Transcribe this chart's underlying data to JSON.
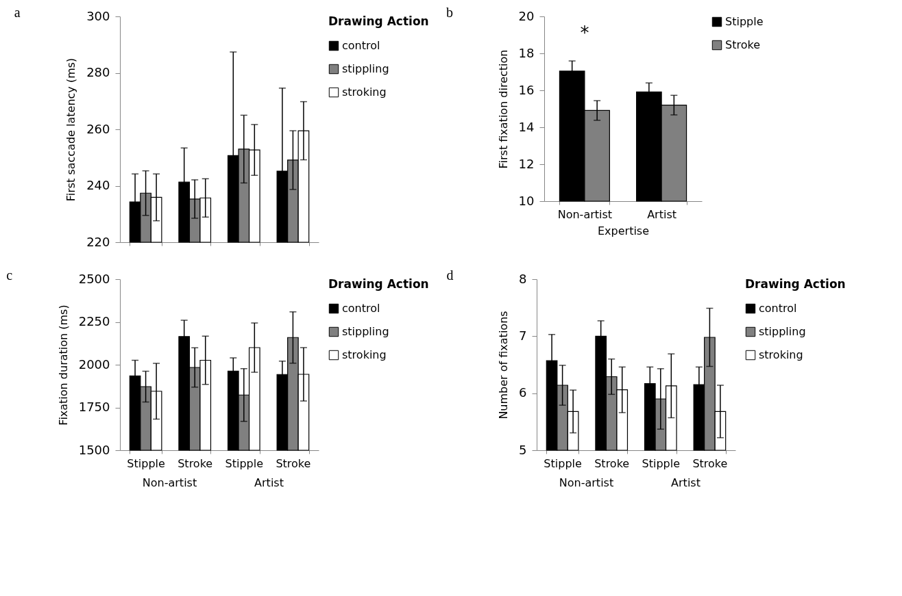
{
  "chart_data": [
    {
      "type": "bar",
      "title": "a",
      "ylabel": "First saccade latency (ms)",
      "categories": [
        null,
        null,
        null,
        null
      ],
      "ylim": [
        220,
        300
      ],
      "yticks": [
        220,
        240,
        260,
        280,
        300
      ],
      "tick_labels": "y",
      "legend": "right",
      "legend_title": "Drawing Action",
      "series": [
        {
          "name": "control",
          "color": "#000000",
          "values": [
            234.3,
            241.3,
            250.7,
            245.2
          ],
          "errors": [
            9.9,
            12.1,
            36.7,
            29.4
          ]
        },
        {
          "name": "stippling",
          "color": "#808080",
          "values": [
            237.4,
            235.3,
            253.0,
            249.1
          ],
          "errors": [
            7.9,
            6.8,
            12,
            10.4
          ]
        },
        {
          "name": "stroking",
          "color": "#ffffff",
          "values": [
            235.9,
            235.7,
            252.7,
            259.5
          ],
          "errors": [
            8.3,
            6.8,
            9,
            10.3
          ]
        }
      ]
    },
    {
      "type": "bar",
      "title": "b",
      "ylabel": "First fixation direction",
      "xlabel": "Expertise",
      "categories": [
        "Non-artist",
        "Artist"
      ],
      "ylim": [
        10,
        20
      ],
      "yticks": [
        10,
        12,
        14,
        16,
        18,
        20
      ],
      "legend": "right",
      "annotations": [
        "*"
      ],
      "series": [
        {
          "name": "Stipple",
          "color": "#000000",
          "values": [
            17.04,
            15.91
          ],
          "errors": [
            0.55,
            0.49
          ]
        },
        {
          "name": "Stroke",
          "color": "#808080",
          "values": [
            14.91,
            15.2
          ],
          "errors": [
            0.53,
            0.53
          ]
        }
      ]
    },
    {
      "type": "bar",
      "title": "c",
      "ylabel": "Fixation duration (ms)",
      "categories": [
        "Stipple",
        "Stroke",
        "Stipple",
        "Stroke"
      ],
      "ylim": [
        1500,
        2500
      ],
      "yticks": [
        1500,
        1750,
        2000,
        2250,
        2500
      ],
      "legend": "right",
      "legend_title": "Drawing Action",
      "annotations": [
        "Non-artist",
        "Artist"
      ],
      "series": [
        {
          "name": "control",
          "color": "#000000",
          "values": [
            1935,
            2165,
            1963,
            1943
          ],
          "errors": [
            91,
            95,
            77,
            78
          ]
        },
        {
          "name": "stippling",
          "color": "#808080",
          "values": [
            1872,
            1984,
            1823,
            2159
          ],
          "errors": [
            90,
            115,
            154,
            150
          ]
        },
        {
          "name": "stroking",
          "color": "#ffffff",
          "values": [
            1845,
            2026,
            2100,
            1944
          ],
          "errors": [
            163,
            141,
            144,
            156
          ]
        }
      ]
    },
    {
      "type": "bar",
      "title": "d",
      "ylabel": "Number of fixations",
      "categories": [
        "Stipple",
        "Stroke",
        "Stipple",
        "Stroke"
      ],
      "ylim": [
        5,
        8
      ],
      "yticks": [
        5,
        6,
        7,
        8
      ],
      "legend": "right",
      "legend_title": "Drawing Action",
      "annotations": [
        "Non-artist",
        "Artist"
      ],
      "series": [
        {
          "name": "control",
          "color": "#000000",
          "values": [
            6.57,
            7.0,
            6.17,
            6.15
          ],
          "errors": [
            0.46,
            0.27,
            0.29,
            0.31
          ]
        },
        {
          "name": "stippling",
          "color": "#808080",
          "values": [
            6.14,
            6.29,
            5.9,
            6.98
          ],
          "errors": [
            0.35,
            0.31,
            0.53,
            0.51
          ]
        },
        {
          "name": "stroking",
          "color": "#ffffff",
          "values": [
            5.68,
            6.06,
            6.13,
            5.68
          ],
          "errors": [
            0.375,
            0.4,
            0.56,
            0.46
          ]
        }
      ]
    }
  ]
}
